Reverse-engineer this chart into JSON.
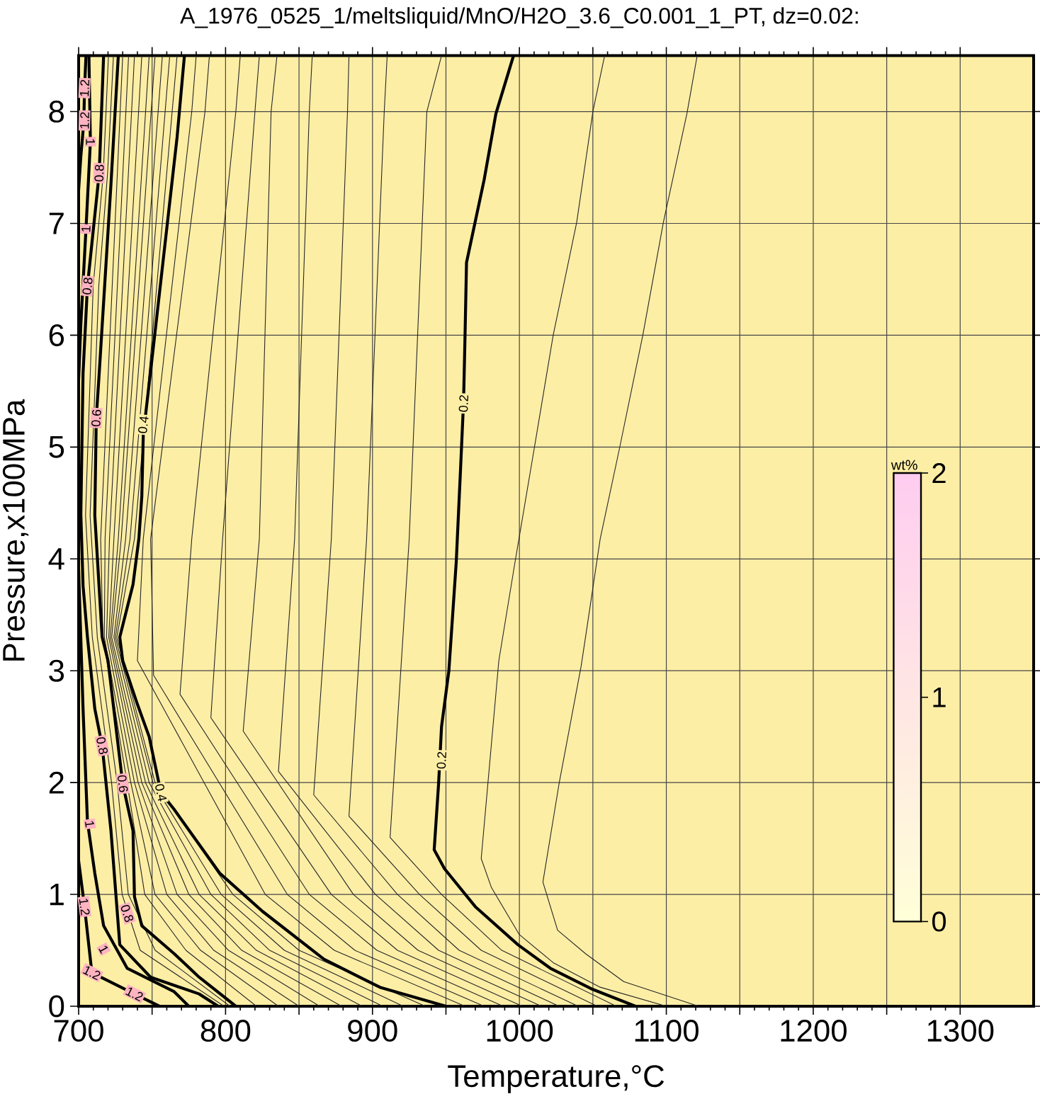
{
  "chart_data": {
    "type": "line",
    "title": "A_1976_0525_1/meltsliquid/MnO/H2O_3.6_C0.001_1_PT, dz=0.02:",
    "xlabel": "Temperature,°C",
    "ylabel": "Pressure,x100MPa",
    "xlim": [
      700,
      1350
    ],
    "ylim": [
      0,
      8.5
    ],
    "xticks": [
      700,
      {
        "value": 750,
        "label": null
      },
      800,
      {
        "value": 850,
        "label": null
      },
      900,
      {
        "value": 950,
        "label": null
      },
      1000,
      {
        "value": 1050,
        "label": null
      },
      1100,
      {
        "value": 1150,
        "label": null
      },
      1200,
      {
        "value": 1250,
        "label": null
      },
      1300
    ],
    "yticks": [
      0,
      1,
      2,
      3,
      4,
      5,
      6,
      7,
      8
    ],
    "grid": true,
    "series": [
      {
        "color": "#000000",
        "x": [
          996,
          984,
          976,
          964,
          963,
          962,
          960,
          957,
          952,
          947,
          945,
          942,
          949,
          970,
          999,
          1021,
          1050,
          1079
        ],
        "values": [
          8.5,
          7.98,
          7.39,
          6.65,
          6.0,
          5.41,
          4.82,
          3.97,
          3.0,
          2.5,
          1.99,
          1.4,
          1.23,
          0.89,
          0.55,
          0.34,
          0.15,
          0
        ]
      },
      {
        "color": "#000000",
        "x": [
          772,
          767,
          759,
          751,
          744,
          743,
          741,
          737,
          728,
          730,
          740,
          748,
          756,
          765,
          796,
          825,
          867,
          905,
          950
        ],
        "values": [
          8.5,
          7.77,
          6.84,
          5.91,
          5.11,
          4.56,
          4.18,
          3.77,
          3.3,
          3.09,
          2.7,
          2.41,
          1.91,
          1.76,
          1.19,
          0.85,
          0.42,
          0.17,
          0
        ]
      },
      {
        "color": "#000000",
        "x": [
          727,
          722,
          714,
          712,
          711,
          716,
          720,
          730,
          737,
          738,
          743,
          765,
          782,
          807
        ],
        "values": [
          8.5,
          7.35,
          5.66,
          5.26,
          4.39,
          3.3,
          3.09,
          1.99,
          1.57,
          0.98,
          0.72,
          0.47,
          0.26,
          0
        ]
      },
      {
        "color": "#000000",
        "x": [
          717,
          714,
          706,
          703,
          701.5,
          703,
          706,
          711,
          716,
          722,
          725,
          728,
          749,
          782,
          795
        ],
        "values": [
          8.5,
          7.45,
          6.44,
          5.66,
          4.4,
          3.76,
          3.3,
          2.66,
          2.33,
          1.57,
          1.06,
          0.55,
          0.26,
          0.11,
          0
        ]
      },
      {
        "color": "#000000",
        "x": [
          707,
          708,
          705,
          701.5,
          700
        ],
        "values": [
          8.5,
          7.73,
          6.95,
          6.1,
          5.6
        ]
      },
      {
        "color": "#000000",
        "x": [
          700,
          703,
          706,
          711,
          717,
          733,
          765,
          775
        ],
        "values": [
          3.9,
          2.66,
          1.65,
          1.19,
          0.72,
          0.34,
          0.13,
          0
        ]
      },
      {
        "color": "#000000",
        "x": [
          705,
          704,
          703.5,
          701.5,
          700
        ],
        "values": [
          8.5,
          8.2,
          7.9,
          7.6,
          7.3
        ]
      },
      {
        "color": "#000000",
        "x": [
          700,
          704,
          709,
          738,
          755
        ],
        "values": [
          1.3,
          0.89,
          0.3,
          0.11,
          0
        ]
      },
      {
        "color": "#262626",
        "x": [
          720.3,
          716.8,
          709.9,
          704.7,
          709.3,
          722.4,
          729.6,
          741.9,
          799
        ],
        "values": [
          8.5,
          7.45,
          6.44,
          4.39,
          3.3,
          2,
          1,
          0.5,
          0
        ]
      },
      {
        "color": "#262626",
        "x": [
          723.7,
          719.7,
          713.7,
          707.8,
          712.7,
          726.2,
          733.8,
          752.1,
          803
        ],
        "values": [
          8.5,
          7.45,
          6.44,
          4.39,
          3.3,
          2,
          1,
          0.5,
          0
        ]
      },
      {
        "color": "#262626",
        "x": [
          730,
          715,
          716.5,
          733,
          745,
          773,
          821
        ],
        "values": [
          8.5,
          4.18,
          3.3,
          2,
          1,
          0.5,
          0
        ]
      },
      {
        "color": "#262626",
        "x": [
          734,
          718,
          717.5,
          735.5,
          752,
          783,
          836
        ],
        "values": [
          8.5,
          4.18,
          3.3,
          2,
          1,
          0.5,
          0
        ]
      },
      {
        "color": "#262626",
        "x": [
          738,
          721,
          719,
          738,
          760,
          792,
          850
        ],
        "values": [
          8.5,
          4.18,
          3.3,
          2,
          1,
          0.5,
          0
        ]
      },
      {
        "color": "#262626",
        "x": [
          743,
          724,
          720.5,
          740.5,
          767,
          802,
          864
        ],
        "values": [
          8.5,
          4.18,
          3.3,
          2,
          1,
          0.5,
          0
        ]
      },
      {
        "color": "#262626",
        "x": [
          748,
          727,
          721.5,
          743,
          775,
          811,
          879
        ],
        "values": [
          8.5,
          4.18,
          3.3,
          2,
          1,
          0.5,
          0
        ]
      },
      {
        "color": "#262626",
        "x": [
          752,
          729,
          722.5,
          745.5,
          782,
          821,
          893
        ],
        "values": [
          8.5,
          4.18,
          3.3,
          2,
          1,
          0.5,
          0
        ]
      },
      {
        "color": "#262626",
        "x": [
          757,
          732,
          724,
          748,
          790,
          830,
          907
        ],
        "values": [
          8.5,
          4.18,
          3.3,
          2,
          1,
          0.5,
          0
        ]
      },
      {
        "color": "#262626",
        "x": [
          762,
          735,
          725,
          750.5,
          797,
          840,
          921
        ],
        "values": [
          8.5,
          4.18,
          3.3,
          2,
          1,
          0.5,
          0
        ]
      },
      {
        "color": "#262626",
        "x": [
          767,
          738,
          726,
          752,
          805,
          850,
          936
        ],
        "values": [
          8.5,
          4.18,
          3.3,
          2,
          1,
          0.5,
          0
        ]
      },
      {
        "color": "#262626",
        "x": [
          780,
          777,
          744,
          740,
          827,
          874,
          963
        ],
        "values": [
          8.5,
          8,
          4.18,
          3.09,
          1,
          0.5,
          0
        ]
      },
      {
        "color": "#262626",
        "x": [
          789,
          786,
          749,
          751,
          842,
          888,
          976
        ],
        "values": [
          8.5,
          8,
          4.18,
          2.96,
          1,
          0.5,
          0
        ]
      },
      {
        "color": "#262626",
        "x": [
          810,
          807,
          777,
          769,
          857,
          903,
          989
        ],
        "values": [
          8.5,
          8,
          4.18,
          2.79,
          1,
          0.5,
          0
        ]
      },
      {
        "color": "#262626",
        "x": [
          823,
          820,
          798,
          790,
          872,
          917,
          1002
        ],
        "values": [
          8.5,
          8,
          4.18,
          2.58,
          1,
          0.5,
          0
        ]
      },
      {
        "color": "#262626",
        "x": [
          835,
          831,
          823,
          812,
          887,
          931,
          1015
        ],
        "values": [
          8.5,
          8,
          4.18,
          2.46,
          1,
          0.5,
          0
        ]
      },
      {
        "color": "#262626",
        "x": [
          859,
          857,
          847,
          836,
          902,
          945,
          1027
        ],
        "values": [
          8.5,
          8,
          4.18,
          2.1,
          1,
          0.5,
          0
        ]
      },
      {
        "color": "#262626",
        "x": [
          884,
          883,
          872,
          860,
          917,
          959,
          1040
        ],
        "values": [
          8.5,
          8,
          4.18,
          1.89,
          1,
          0.5,
          0
        ]
      },
      {
        "color": "#262626",
        "x": [
          910,
          908,
          896,
          884,
          932,
          974,
          1053
        ],
        "values": [
          8.5,
          8,
          4.18,
          1.7,
          1,
          0.5,
          0
        ]
      },
      {
        "color": "#262626",
        "x": [
          947,
          937,
          925,
          912,
          947,
          988,
          1066
        ],
        "values": [
          8.5,
          8,
          4.18,
          1.51,
          1,
          0.5,
          0
        ]
      },
      {
        "color": "#262626",
        "x": [
          1058,
          1050,
          1039,
          1023,
          1010,
          997,
          986,
          974,
          981,
          1000,
          1023,
          1055,
          1100
        ],
        "values": [
          8.5,
          8,
          7.01,
          6.0,
          4.98,
          3.97,
          3.09,
          1.32,
          1.06,
          0.64,
          0.39,
          0.17,
          0
        ]
      },
      {
        "color": "#262626",
        "x": [
          1121,
          1114,
          1098,
          1084,
          1068,
          1055,
          1045,
          1042,
          1027,
          1016,
          1026,
          1045,
          1071,
          1122
        ],
        "values": [
          8.5,
          7.98,
          7.01,
          6.0,
          4.98,
          4.18,
          3.3,
          3.04,
          1.99,
          1.11,
          0.68,
          0.47,
          0.22,
          0
        ]
      }
    ],
    "annotations": [
      {
        "text": "1.2",
        "x": 704,
        "y": 8.21
      },
      {
        "text": "1.2",
        "x": 704,
        "y": 7.92
      },
      {
        "text": "1",
        "x": 708,
        "y": 7.73
      },
      {
        "text": "0.8",
        "x": 714,
        "y": 7.45
      },
      {
        "text": "1",
        "x": 705,
        "y": 6.95
      },
      {
        "text": "0.8",
        "x": 706,
        "y": 6.44
      },
      {
        "text": "0.6",
        "x": 712,
        "y": 5.26
      },
      {
        "text": "0.4",
        "x": 744,
        "y": 5.2
      },
      {
        "text": "0.2",
        "x": 962,
        "y": 5.39
      },
      {
        "text": "0.2",
        "x": 947,
        "y": 2.2
      },
      {
        "text": "0.8",
        "x": 716,
        "y": 2.33
      },
      {
        "text": "0.6",
        "x": 730,
        "y": 1.99
      },
      {
        "text": "0.4",
        "x": 756,
        "y": 1.91
      },
      {
        "text": "1",
        "x": 707.5,
        "y": 1.63
      },
      {
        "text": "1.2",
        "x": 704,
        "y": 0.89
      },
      {
        "text": "0.8",
        "x": 733,
        "y": 0.83
      },
      {
        "text": "1",
        "x": 717,
        "y": 0.51
      },
      {
        "text": "1.2",
        "x": 709,
        "y": 0.3
      },
      {
        "text": "1.2",
        "x": 738,
        "y": 0.11
      },
      "wt%",
      "0",
      "1",
      "2"
    ]
  }
}
